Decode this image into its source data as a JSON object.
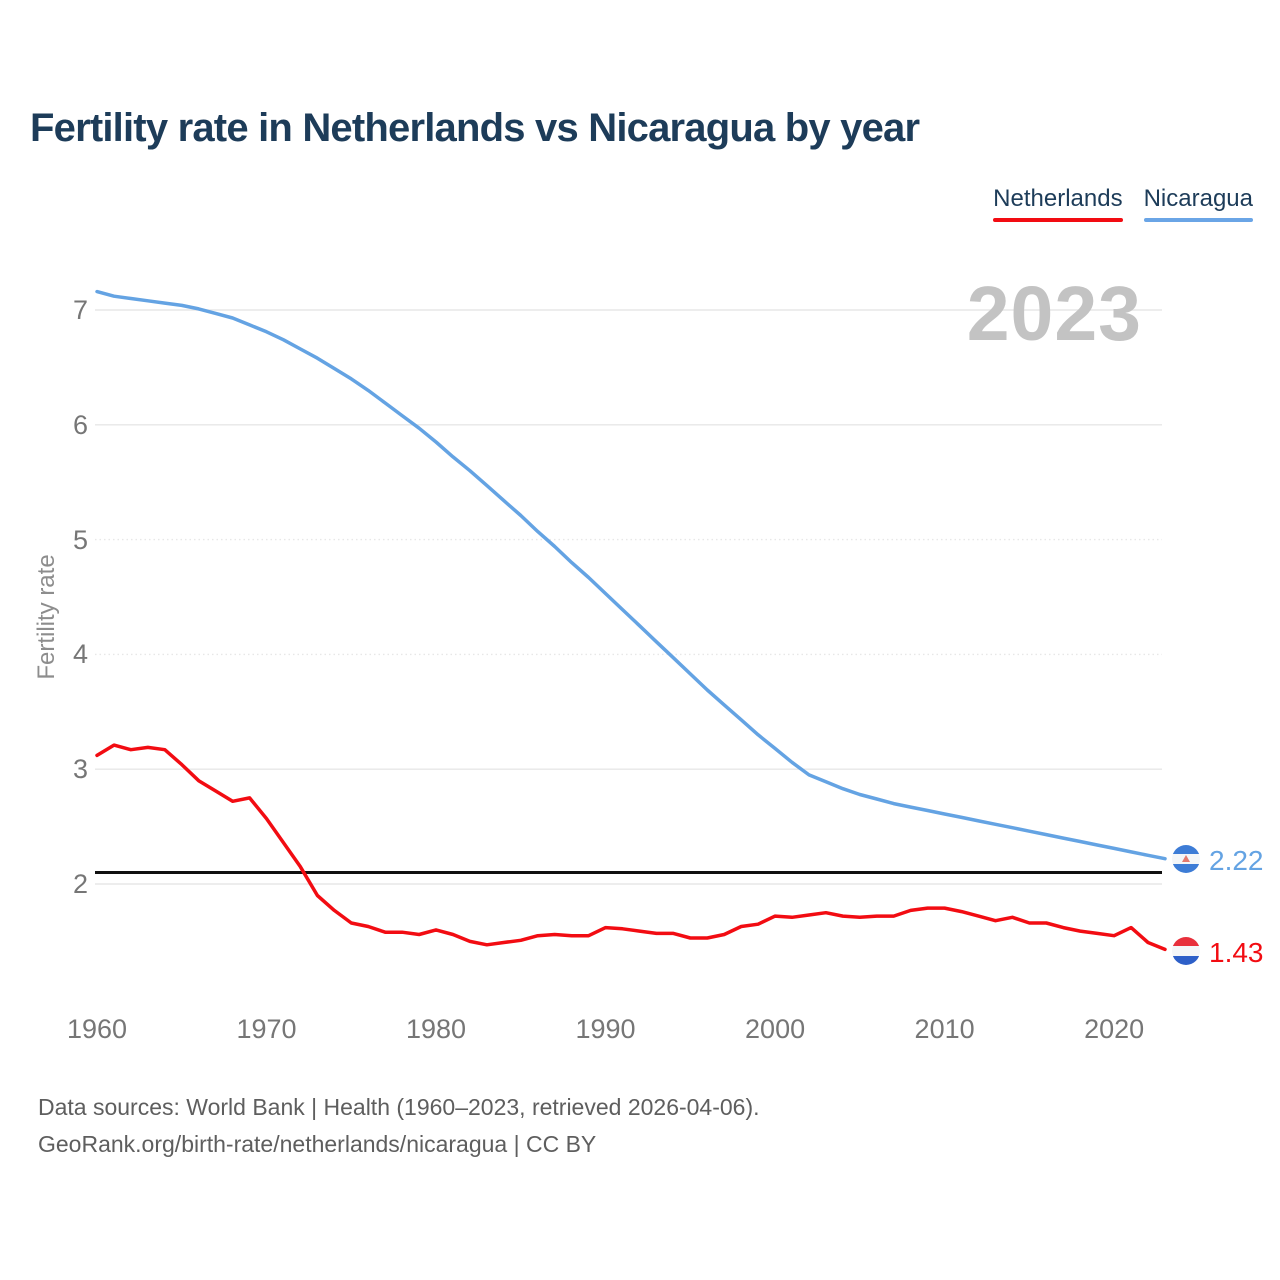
{
  "title": "Fertility rate in Netherlands vs Nicaragua by year",
  "watermark": "2023",
  "legend": [
    {
      "label": "Netherlands",
      "color": "#f20c12"
    },
    {
      "label": "Nicaragua",
      "color": "#6aa5e6"
    }
  ],
  "chart_data": {
    "type": "line",
    "title": "Fertility rate in Netherlands vs Nicaragua by year",
    "xlabel": "",
    "ylabel": "Fertility rate",
    "x_start": 1960,
    "x_end": 2023,
    "x_step": 1,
    "xticks": [
      1960,
      1970,
      1980,
      1990,
      2000,
      2010,
      2020
    ],
    "yticks": [
      2,
      3,
      4,
      5,
      6,
      7
    ],
    "ylim": [
      1.2,
      7.3
    ],
    "grid": "horizontal",
    "legend_position": "top-right",
    "reference_line": {
      "value": 2.1,
      "color": "#101010"
    },
    "series": [
      {
        "name": "Netherlands",
        "color": "#f20c12",
        "end_label": "1.43",
        "flag": "netherlands-flag",
        "values": [
          3.12,
          3.21,
          3.17,
          3.19,
          3.17,
          3.04,
          2.9,
          2.81,
          2.72,
          2.75,
          2.57,
          2.36,
          2.15,
          1.9,
          1.77,
          1.66,
          1.63,
          1.58,
          1.58,
          1.56,
          1.6,
          1.56,
          1.5,
          1.47,
          1.49,
          1.51,
          1.55,
          1.56,
          1.55,
          1.55,
          1.62,
          1.61,
          1.59,
          1.57,
          1.57,
          1.53,
          1.53,
          1.56,
          1.63,
          1.65,
          1.72,
          1.71,
          1.73,
          1.75,
          1.72,
          1.71,
          1.72,
          1.72,
          1.77,
          1.79,
          1.79,
          1.76,
          1.72,
          1.68,
          1.71,
          1.66,
          1.66,
          1.62,
          1.59,
          1.57,
          1.55,
          1.62,
          1.49,
          1.43
        ]
      },
      {
        "name": "Nicaragua",
        "color": "#64a3e3",
        "end_label": "2.22",
        "flag": "nicaragua-flag",
        "values": [
          7.16,
          7.12,
          7.1,
          7.08,
          7.06,
          7.04,
          7.01,
          6.97,
          6.93,
          6.87,
          6.81,
          6.74,
          6.66,
          6.58,
          6.49,
          6.4,
          6.3,
          6.19,
          6.08,
          5.97,
          5.85,
          5.72,
          5.6,
          5.47,
          5.34,
          5.21,
          5.07,
          4.94,
          4.8,
          4.67,
          4.53,
          4.39,
          4.25,
          4.11,
          3.97,
          3.83,
          3.69,
          3.56,
          3.43,
          3.3,
          3.18,
          3.06,
          2.95,
          2.89,
          2.83,
          2.78,
          2.74,
          2.7,
          2.67,
          2.64,
          2.61,
          2.58,
          2.55,
          2.52,
          2.49,
          2.46,
          2.43,
          2.4,
          2.37,
          2.34,
          2.31,
          2.28,
          2.25,
          2.22
        ]
      }
    ]
  },
  "footer": {
    "line1": "Data sources: World Bank | Health (1960–2023, retrieved 2026-04-06).",
    "line2": "GeoRank.org/birth-rate/netherlands/nicaragua | CC BY"
  }
}
